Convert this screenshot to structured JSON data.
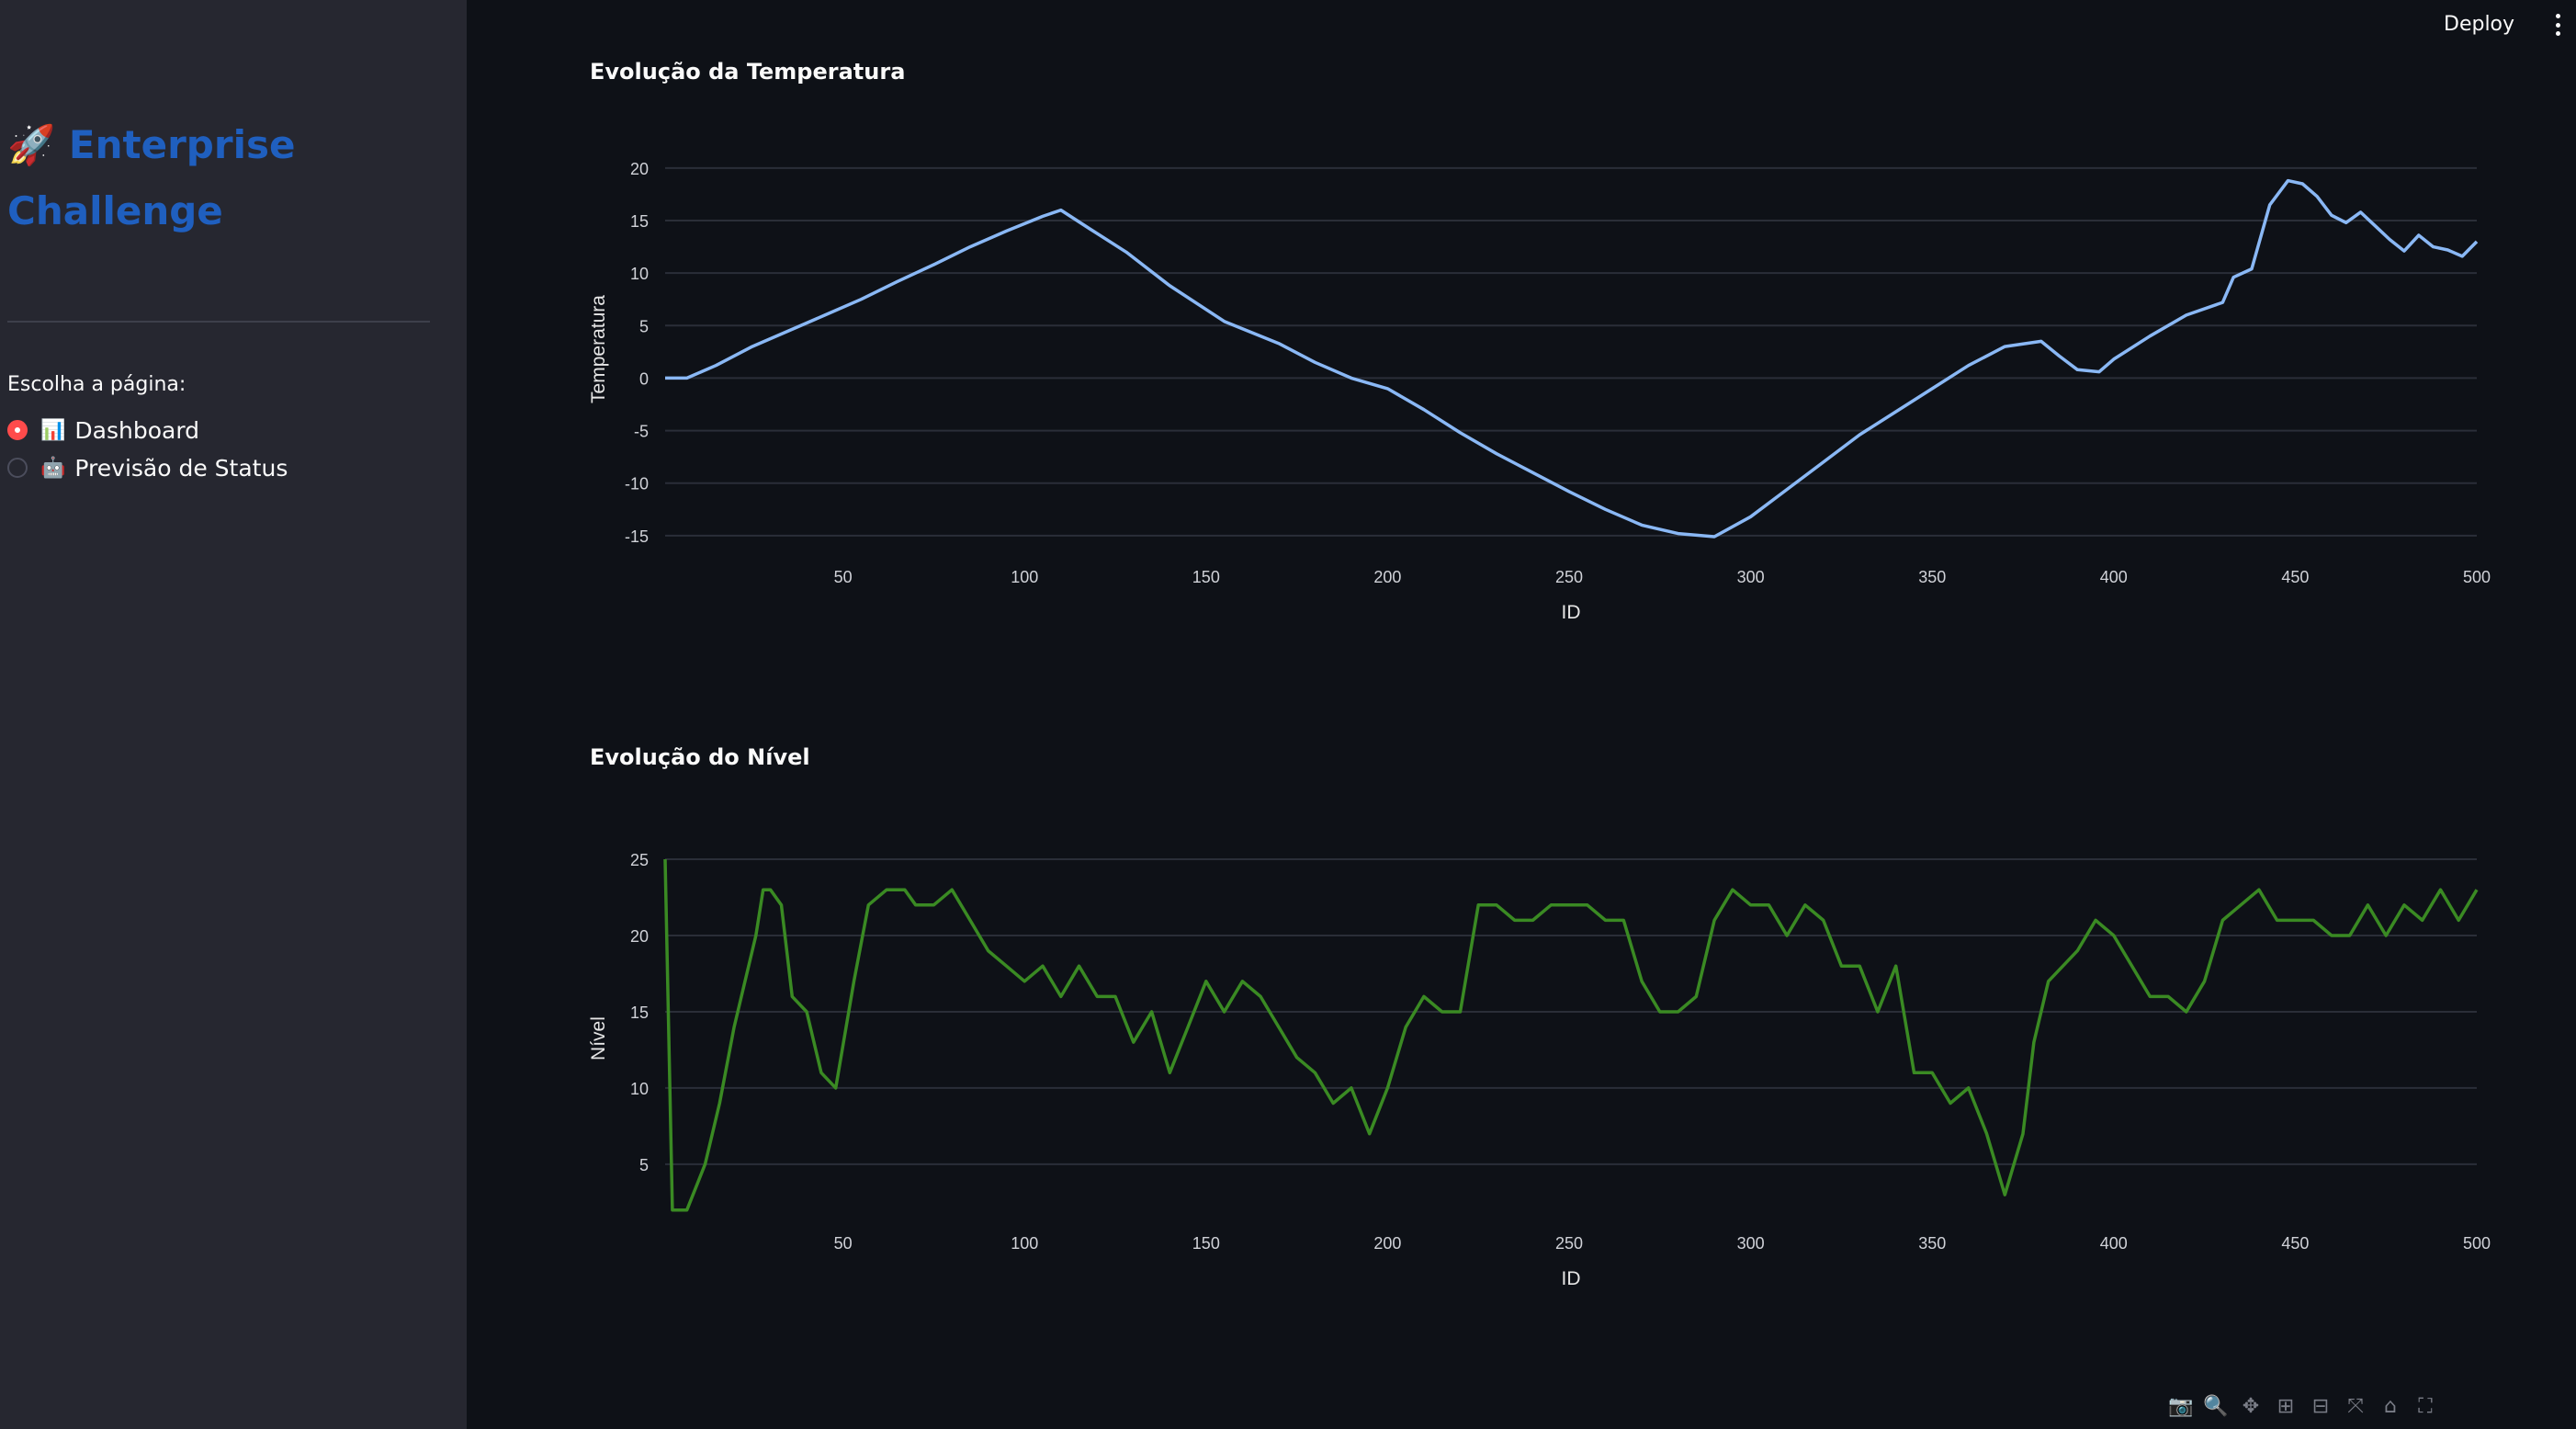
{
  "sidebar": {
    "title_icon": "🚀",
    "title": "Enterprise Challenge",
    "nav_label": "Escolha a página:",
    "options": [
      {
        "icon": "📊",
        "label": "Dashboard",
        "selected": true
      },
      {
        "icon": "🤖",
        "label": "Previsão de Status",
        "selected": false
      }
    ]
  },
  "header": {
    "deploy_label": "Deploy"
  },
  "modebar": {
    "icons": [
      "camera-icon",
      "zoom-icon",
      "pan-icon",
      "zoom-in-icon",
      "zoom-out-icon",
      "autoscale-icon",
      "home-icon",
      "fullscreen-icon"
    ]
  },
  "chart_data": [
    {
      "type": "line",
      "title": "Evolução da Temperatura",
      "xlabel": "ID",
      "ylabel": "Temperatura",
      "color": "#8ab8f5",
      "xlim": [
        1,
        500
      ],
      "ylim": [
        -16.5,
        22
      ],
      "xticks": [
        50,
        100,
        150,
        200,
        250,
        300,
        350,
        400,
        450,
        500
      ],
      "yticks": [
        20,
        15,
        10,
        5,
        0,
        -5,
        -10,
        -15
      ],
      "grid": "horizontal",
      "series": [
        {
          "x": [
            1,
            7,
            15,
            25,
            35,
            45,
            55,
            65,
            75,
            85,
            95,
            105,
            110,
            118,
            128,
            140,
            155,
            170,
            180,
            190,
            200,
            210,
            220,
            230,
            240,
            250,
            260,
            270,
            280,
            290,
            300,
            310,
            320,
            330,
            340,
            350,
            360,
            370,
            380,
            385,
            390,
            396,
            400,
            410,
            420,
            430,
            433,
            438,
            443,
            448,
            452,
            456,
            460,
            464,
            468,
            472,
            476,
            480,
            484,
            488,
            492,
            496,
            500
          ],
          "y": [
            0,
            0,
            1.2,
            3,
            4.5,
            6,
            7.5,
            9.2,
            10.8,
            12.5,
            14,
            15.4,
            16,
            14.2,
            12,
            8.8,
            5.4,
            3.3,
            1.5,
            0,
            -1,
            -3,
            -5.2,
            -7.2,
            -9,
            -10.8,
            -12.5,
            -14,
            -14.8,
            -15.1,
            -13.2,
            -10.6,
            -8,
            -5.4,
            -3.2,
            -1,
            1.2,
            3,
            3.5,
            2.1,
            0.8,
            0.6,
            1.8,
            4,
            6,
            7.2,
            9.6,
            10.4,
            16.5,
            18.8,
            18.5,
            17.3,
            15.5,
            14.8,
            15.8,
            14.5,
            13.2,
            12.1,
            13.6,
            12.5,
            12.2,
            11.6,
            13
          ]
        }
      ]
    },
    {
      "type": "line",
      "title": "Evolução do Nível",
      "xlabel": "ID",
      "ylabel": "Nível",
      "color": "#3a8a23",
      "xlim": [
        1,
        500
      ],
      "ylim": [
        1.5,
        25
      ],
      "xticks": [
        50,
        100,
        150,
        200,
        250,
        300,
        350,
        400,
        450,
        500
      ],
      "yticks": [
        25,
        20,
        15,
        10,
        5
      ],
      "grid": "horizontal",
      "series": [
        {
          "x": [
            1,
            3,
            7,
            12,
            16,
            20,
            26,
            28,
            30,
            33,
            36,
            40,
            44,
            48,
            53,
            57,
            62,
            67,
            70,
            75,
            80,
            85,
            90,
            95,
            100,
            105,
            110,
            115,
            120,
            125,
            130,
            135,
            140,
            145,
            150,
            155,
            160,
            165,
            170,
            175,
            180,
            185,
            190,
            195,
            200,
            205,
            210,
            215,
            220,
            225,
            230,
            235,
            240,
            245,
            250,
            255,
            260,
            265,
            270,
            275,
            280,
            285,
            290,
            295,
            300,
            305,
            310,
            315,
            320,
            325,
            330,
            335,
            340,
            345,
            350,
            355,
            360,
            365,
            370,
            375,
            378,
            382,
            386,
            390,
            395,
            400,
            405,
            410,
            415,
            420,
            425,
            430,
            435,
            440,
            445,
            450,
            455,
            460,
            465,
            470,
            475,
            480,
            485,
            490,
            495,
            500
          ],
          "y": [
            25,
            2,
            2,
            5,
            9,
            14,
            20,
            23,
            23,
            22,
            16,
            15,
            11,
            10,
            17,
            22,
            23,
            23,
            22,
            22,
            23,
            21,
            19,
            18,
            17,
            18,
            16,
            18,
            16,
            16,
            13,
            15,
            11,
            14,
            17,
            15,
            17,
            16,
            14,
            12,
            11,
            9,
            10,
            7,
            10,
            14,
            16,
            15,
            15,
            22,
            22,
            21,
            21,
            22,
            22,
            22,
            21,
            21,
            17,
            15,
            15,
            16,
            21,
            23,
            22,
            22,
            20,
            22,
            21,
            18,
            18,
            15,
            18,
            11,
            11,
            9,
            10,
            7,
            3,
            7,
            13,
            17,
            18,
            19,
            21,
            20,
            18,
            16,
            16,
            15,
            17,
            21,
            22,
            23,
            21,
            21,
            21,
            20,
            20,
            22,
            20,
            22,
            21,
            23,
            21,
            23
          ]
        }
      ]
    }
  ]
}
